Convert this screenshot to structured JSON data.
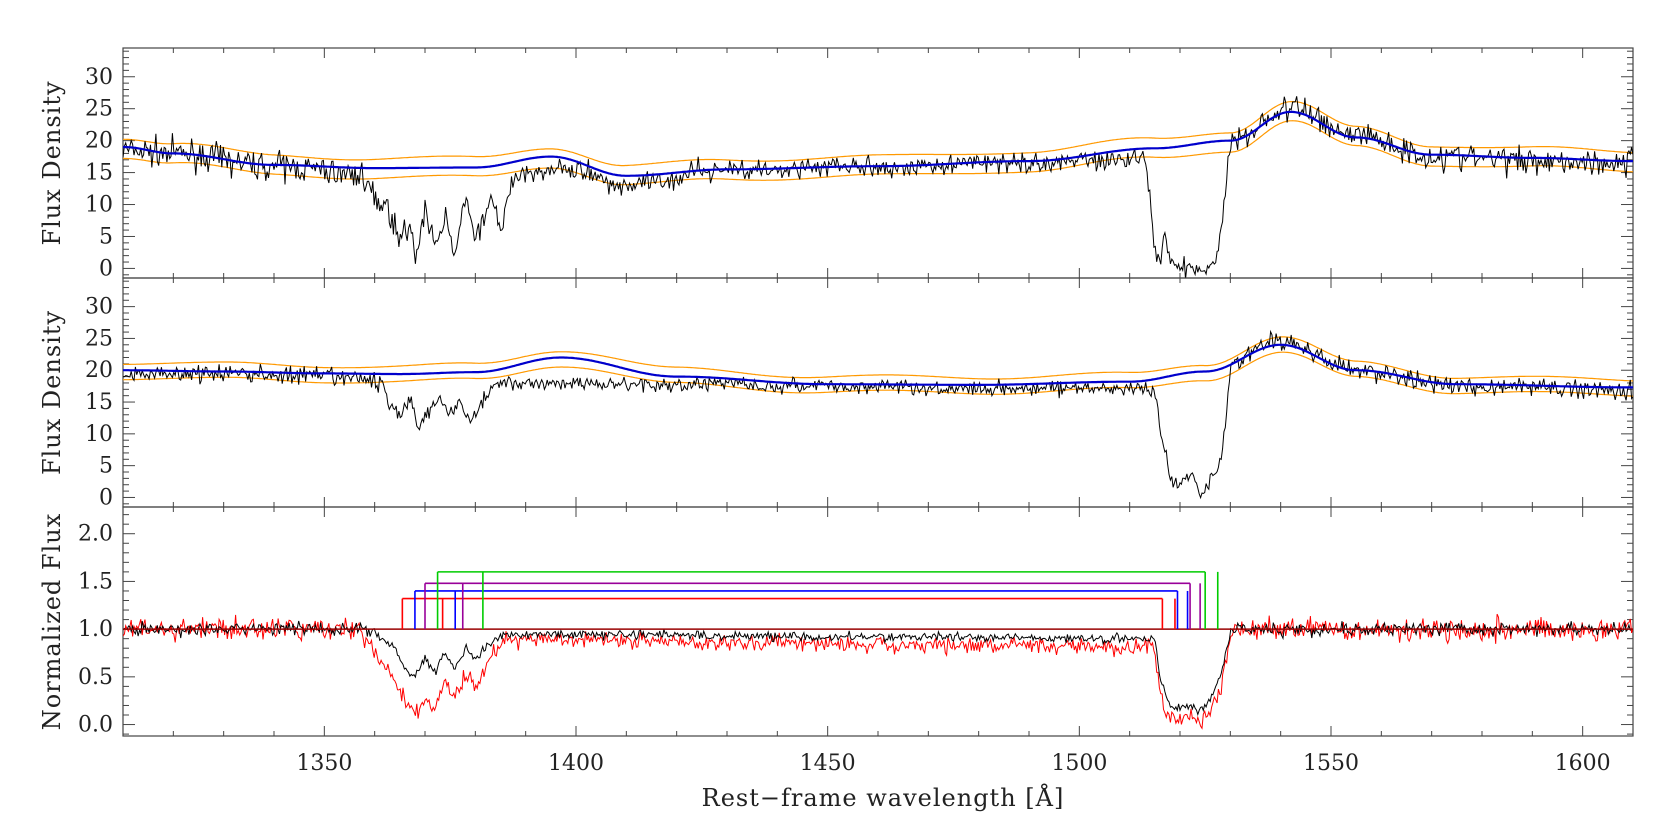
{
  "chart_data": [
    {
      "type": "line",
      "panel": "top",
      "ylabel": "Flux Density",
      "xlim": [
        1310,
        1610
      ],
      "ylim": [
        -1.5,
        34.5
      ],
      "yticks": [
        0,
        5,
        10,
        15,
        20,
        25,
        30
      ],
      "yticklabels": [
        "0",
        "5",
        "10",
        "15",
        "20",
        "25",
        "30"
      ],
      "series": [
        {
          "role": "spectrum",
          "color": "#000000",
          "continuum_x": [
            1310,
            1320,
            1340,
            1360,
            1380,
            1395,
            1410,
            1430,
            1460,
            1490,
            1515,
            1530,
            1542,
            1555,
            1570,
            1590,
            1610
          ],
          "continuum_y": [
            18.5,
            18,
            16,
            14.5,
            15.5,
            17.5,
            13,
            15.5,
            16,
            16.5,
            18.5,
            20,
            25,
            21,
            17.5,
            17,
            16.5
          ],
          "absorption_x": [
            1358,
            1362,
            1365,
            1367,
            1368,
            1370,
            1372,
            1374,
            1376,
            1378,
            1380,
            1383,
            1385,
            1387,
            1390,
            1513,
            1514,
            1515,
            1516,
            1517,
            1518,
            1520,
            1522,
            1525,
            1527,
            1528,
            1529,
            1530
          ],
          "absorption_y": [
            13,
            10,
            5,
            7,
            1,
            9,
            3,
            8,
            2,
            11,
            4,
            12,
            6,
            13,
            15,
            17,
            10,
            3,
            0,
            6,
            1,
            0,
            0.5,
            0,
            1,
            5,
            12,
            19
          ]
        },
        {
          "role": "model",
          "color": "#0000cc",
          "x": [
            1310,
            1320,
            1340,
            1360,
            1380,
            1395,
            1410,
            1430,
            1460,
            1490,
            1515,
            1530,
            1542,
            1555,
            1570,
            1590,
            1610
          ],
          "y": [
            19,
            18,
            16.2,
            15.7,
            15.8,
            17.5,
            14.5,
            15.5,
            16,
            16.8,
            18.8,
            20,
            24.5,
            20.5,
            17.8,
            17.3,
            16.8
          ]
        },
        {
          "role": "upper_envelope",
          "color": "#ff9900",
          "offset": 1.5
        },
        {
          "role": "lower_envelope",
          "color": "#ff9900",
          "offset": -1.5
        }
      ]
    },
    {
      "type": "line",
      "panel": "middle",
      "ylabel": "Flux Density",
      "xlim": [
        1310,
        1610
      ],
      "ylim": [
        -1.5,
        34.5
      ],
      "yticks": [
        0,
        5,
        10,
        15,
        20,
        25,
        30
      ],
      "yticklabels": [
        "0",
        "5",
        "10",
        "15",
        "20",
        "25",
        "30"
      ],
      "series": [
        {
          "role": "spectrum",
          "color": "#000000",
          "continuum_x": [
            1310,
            1330,
            1350,
            1365,
            1380,
            1397,
            1420,
            1450,
            1480,
            1510,
            1525,
            1540,
            1555,
            1575,
            1610
          ],
          "continuum_y": [
            19.5,
            19.5,
            19,
            18,
            19,
            22.5,
            19,
            17.5,
            17.5,
            18,
            19.5,
            24.5,
            20,
            17.5,
            17
          ],
          "absorption_x": [
            1362,
            1365,
            1367,
            1369,
            1371,
            1373,
            1375,
            1377,
            1379,
            1382,
            1384,
            1515,
            1516,
            1517,
            1518,
            1520,
            1522,
            1524,
            1526,
            1528,
            1529,
            1530
          ],
          "absorption_y": [
            16,
            13,
            15,
            11,
            14,
            16,
            13,
            15,
            12,
            16,
            18,
            17,
            11,
            8,
            3,
            2,
            4,
            0.5,
            3,
            5,
            12,
            19
          ]
        },
        {
          "role": "model",
          "color": "#0000cc",
          "x": [
            1310,
            1330,
            1350,
            1365,
            1380,
            1397,
            1420,
            1450,
            1480,
            1510,
            1525,
            1540,
            1555,
            1575,
            1610
          ],
          "y": [
            20,
            19.8,
            19.5,
            19.4,
            19.7,
            22,
            19,
            17.8,
            17.7,
            18.2,
            19.8,
            24,
            20,
            17.8,
            17.3
          ]
        },
        {
          "role": "upper_envelope",
          "color": "#ff9900",
          "offset": 1.2
        },
        {
          "role": "lower_envelope",
          "color": "#ff9900",
          "offset": -1.2
        }
      ]
    },
    {
      "type": "line",
      "panel": "bottom",
      "ylabel": "Normalized Flux",
      "xlabel": "Rest−frame wavelength [Å]",
      "xlim": [
        1310,
        1610
      ],
      "ylim": [
        -0.12,
        2.28
      ],
      "yticks": [
        0,
        0.5,
        1.0,
        1.5,
        2.0
      ],
      "yticklabels": [
        "0.0",
        "0.5",
        "1.0",
        "1.5",
        "2.0"
      ],
      "xticks": [
        1350,
        1400,
        1450,
        1500,
        1550,
        1600
      ],
      "xticklabels": [
        "1350",
        "1400",
        "1450",
        "1500",
        "1550",
        "1600"
      ],
      "series": [
        {
          "role": "normalized_spectrum",
          "color": "#000000",
          "level": 1.0,
          "absorption_x": [
            1360,
            1364,
            1366,
            1368,
            1370,
            1372,
            1374,
            1376,
            1378,
            1380,
            1383,
            1386,
            1515,
            1516,
            1517,
            1518,
            1520,
            1522,
            1524,
            1526,
            1528,
            1530
          ],
          "absorption_y": [
            0.95,
            0.8,
            0.6,
            0.5,
            0.7,
            0.55,
            0.75,
            0.6,
            0.8,
            0.7,
            0.85,
            0.95,
            0.9,
            0.5,
            0.35,
            0.2,
            0.15,
            0.2,
            0.15,
            0.25,
            0.5,
            0.95
          ]
        },
        {
          "role": "normalized_spectrum_alt",
          "color": "#ff0000",
          "level": 1.0,
          "absorption_x": [
            1358,
            1362,
            1365,
            1367,
            1368,
            1370,
            1372,
            1374,
            1376,
            1378,
            1380,
            1383,
            1386,
            1515,
            1516,
            1517,
            1518,
            1520,
            1522,
            1524,
            1526,
            1528,
            1530
          ],
          "absorption_y": [
            0.9,
            0.6,
            0.35,
            0.2,
            0.1,
            0.3,
            0.15,
            0.45,
            0.25,
            0.55,
            0.4,
            0.7,
            0.9,
            0.8,
            0.35,
            0.15,
            0.08,
            0.05,
            0.1,
            0.04,
            0.12,
            0.35,
            0.9
          ]
        },
        {
          "role": "unity",
          "color": "#990000",
          "y": 1.0
        }
      ],
      "brackets": [
        {
          "color": "#ff0000",
          "y": 1.32,
          "x1": 1365.5,
          "x2": 1516.5,
          "inner": [
            1373.5,
            1519.0
          ]
        },
        {
          "color": "#0000ff",
          "y": 1.4,
          "x1": 1368.0,
          "x2": 1519.5,
          "inner": [
            1376.0,
            1521.5
          ]
        },
        {
          "color": "#990099",
          "y": 1.48,
          "x1": 1370.0,
          "x2": 1522.0,
          "inner": [
            1377.5,
            1524.0
          ]
        },
        {
          "color": "#00cc00",
          "y": 1.6,
          "x1": 1372.5,
          "x2": 1525.0,
          "inner": [
            1381.5,
            1527.5
          ]
        }
      ]
    }
  ]
}
